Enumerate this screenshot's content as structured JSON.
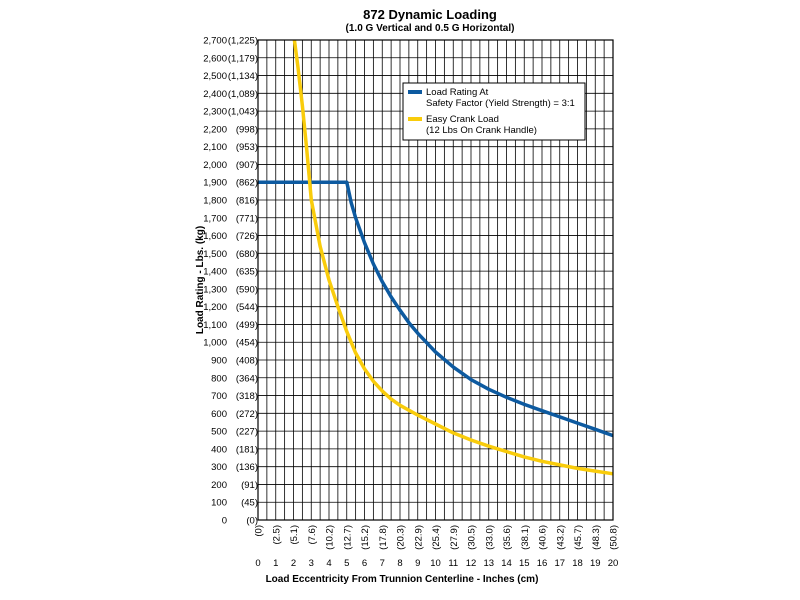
{
  "chart_data": {
    "type": "line",
    "title": "872 Dynamic Loading",
    "subtitle": "(1.0 G Vertical and 0.5 G Horizontal)",
    "xlabel": "Load Eccentricity From Trunnion Centerline - Inches (cm)",
    "ylabel": "Load Rating - Lbs. (kg)",
    "xlim": [
      0,
      20
    ],
    "ylim": [
      0,
      2700
    ],
    "grid": true,
    "legend_position": "top-right",
    "x_ticks": [
      {
        "value": 0,
        "label": "0",
        "sub": "(0)"
      },
      {
        "value": 1,
        "label": "1",
        "sub": "(2.5)"
      },
      {
        "value": 2,
        "label": "2",
        "sub": "(5.1)"
      },
      {
        "value": 3,
        "label": "3",
        "sub": "(7.6)"
      },
      {
        "value": 4,
        "label": "4",
        "sub": "(10.2)"
      },
      {
        "value": 5,
        "label": "5",
        "sub": "(12.7)"
      },
      {
        "value": 6,
        "label": "6",
        "sub": "(15.2)"
      },
      {
        "value": 7,
        "label": "7",
        "sub": "(17.8)"
      },
      {
        "value": 8,
        "label": "8",
        "sub": "(20.3)"
      },
      {
        "value": 9,
        "label": "9",
        "sub": "(22.9)"
      },
      {
        "value": 10,
        "label": "10",
        "sub": "(25.4)"
      },
      {
        "value": 11,
        "label": "11",
        "sub": "(27.9)"
      },
      {
        "value": 12,
        "label": "12",
        "sub": "(30.5)"
      },
      {
        "value": 13,
        "label": "13",
        "sub": "(33.0)"
      },
      {
        "value": 14,
        "label": "14",
        "sub": "(35.6)"
      },
      {
        "value": 15,
        "label": "15",
        "sub": "(38.1)"
      },
      {
        "value": 16,
        "label": "16",
        "sub": "(40.6)"
      },
      {
        "value": 17,
        "label": "17",
        "sub": "(43.2)"
      },
      {
        "value": 18,
        "label": "18",
        "sub": "(45.7)"
      },
      {
        "value": 19,
        "label": "19",
        "sub": "(48.3)"
      },
      {
        "value": 20,
        "label": "20",
        "sub": "(50.8)"
      }
    ],
    "y_ticks": [
      {
        "value": 0,
        "label": "0",
        "sub": "(0)"
      },
      {
        "value": 100,
        "label": "100",
        "sub": "(45)"
      },
      {
        "value": 200,
        "label": "200",
        "sub": "(91)"
      },
      {
        "value": 300,
        "label": "300",
        "sub": "(136)"
      },
      {
        "value": 400,
        "label": "400",
        "sub": "(181)"
      },
      {
        "value": 500,
        "label": "500",
        "sub": "(227)"
      },
      {
        "value": 600,
        "label": "600",
        "sub": "(272)"
      },
      {
        "value": 700,
        "label": "700",
        "sub": "(318)"
      },
      {
        "value": 800,
        "label": "800",
        "sub": "(364)"
      },
      {
        "value": 900,
        "label": "900",
        "sub": "(408)"
      },
      {
        "value": 1000,
        "label": "1,000",
        "sub": "(454)"
      },
      {
        "value": 1100,
        "label": "1,100",
        "sub": "(499)"
      },
      {
        "value": 1200,
        "label": "1,200",
        "sub": "(544)"
      },
      {
        "value": 1300,
        "label": "1,300",
        "sub": "(590)"
      },
      {
        "value": 1400,
        "label": "1,400",
        "sub": "(635)"
      },
      {
        "value": 1500,
        "label": "1,500",
        "sub": "(680)"
      },
      {
        "value": 1600,
        "label": "1,600",
        "sub": "(726)"
      },
      {
        "value": 1700,
        "label": "1,700",
        "sub": "(771)"
      },
      {
        "value": 1800,
        "label": "1,800",
        "sub": "(816)"
      },
      {
        "value": 1900,
        "label": "1,900",
        "sub": "(862)"
      },
      {
        "value": 2000,
        "label": "2,000",
        "sub": "(907)"
      },
      {
        "value": 2100,
        "label": "2,100",
        "sub": "(953)"
      },
      {
        "value": 2200,
        "label": "2,200",
        "sub": "(998)"
      },
      {
        "value": 2300,
        "label": "2,300",
        "sub": "(1,043)"
      },
      {
        "value": 2400,
        "label": "2,400",
        "sub": "(1,089)"
      },
      {
        "value": 2500,
        "label": "2,500",
        "sub": "(1,134)"
      },
      {
        "value": 2600,
        "label": "2,600",
        "sub": "(1,179)"
      },
      {
        "value": 2700,
        "label": "2,700",
        "sub": "(1,225)"
      }
    ],
    "series": [
      {
        "name": "Load Rating At Safety Factor (Yield Strength) = 3:1",
        "legend_lines": [
          "Load Rating At",
          "Safety Factor (Yield Strength) = 3:1"
        ],
        "color": "#0d5aa0",
        "x": [
          0,
          1,
          2,
          3,
          4,
          5,
          5.25,
          5.5,
          6,
          6.5,
          7,
          7.5,
          8,
          8.5,
          9,
          10,
          11,
          12,
          13,
          14,
          15,
          16,
          17,
          18,
          19,
          20
        ],
        "y": [
          1900,
          1900,
          1900,
          1900,
          1900,
          1900,
          1785,
          1700,
          1560,
          1440,
          1340,
          1255,
          1180,
          1110,
          1050,
          945,
          860,
          790,
          735,
          690,
          650,
          615,
          580,
          545,
          510,
          475
        ]
      },
      {
        "name": "Easy Crank Load (12 Lbs On Crank Handle)",
        "legend_lines": [
          "Easy Crank Load",
          "(12 Lbs On Crank Handle)"
        ],
        "color": "#f9cc0b",
        "x": [
          2.05,
          2.25,
          2.5,
          2.75,
          3,
          3.5,
          4,
          4.5,
          5,
          5.5,
          6,
          6.5,
          7,
          7.5,
          8,
          9,
          10,
          11,
          12,
          13,
          14,
          15,
          16,
          17,
          18,
          19,
          20
        ],
        "y": [
          2700,
          2550,
          2330,
          2080,
          1800,
          1540,
          1350,
          1200,
          1060,
          940,
          850,
          780,
          725,
          680,
          645,
          590,
          540,
          490,
          450,
          415,
          385,
          355,
          330,
          310,
          290,
          275,
          260
        ]
      }
    ]
  }
}
